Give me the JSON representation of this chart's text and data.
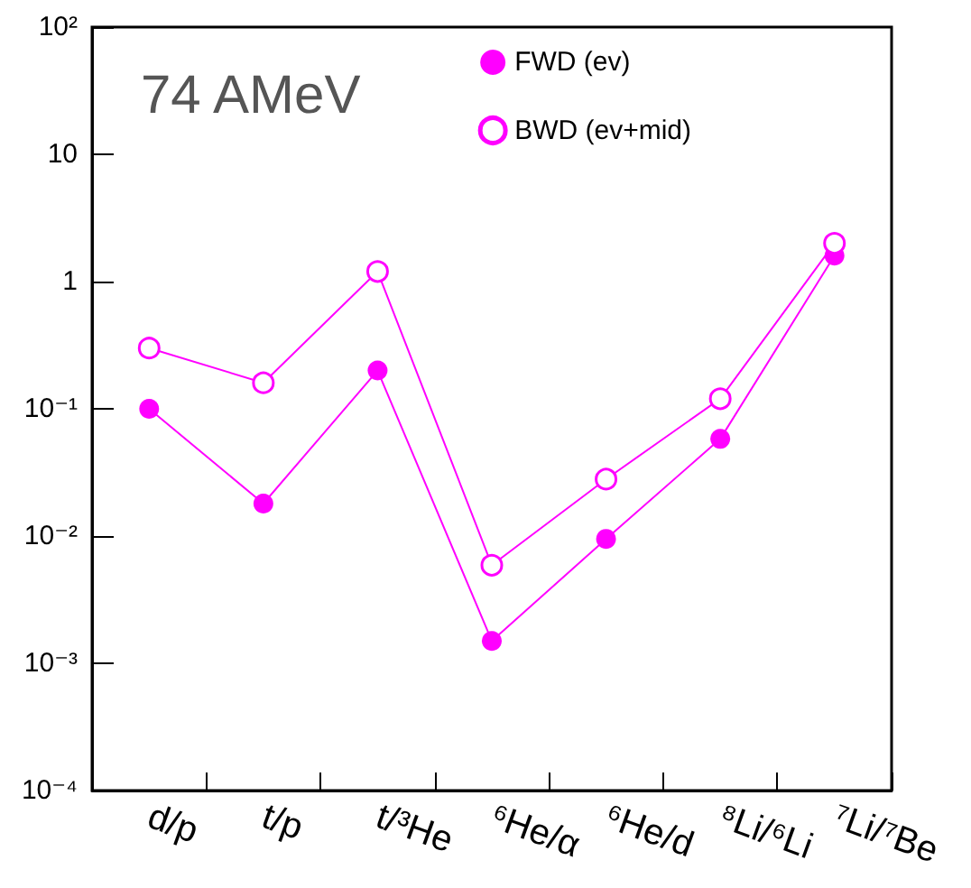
{
  "chart_data": {
    "type": "line",
    "categories": [
      "d/p",
      "t/p",
      "t/³He",
      "⁶He/α",
      "⁶He/d",
      "⁸Li/⁶Li",
      "⁷Li/⁷Be"
    ],
    "series": [
      {
        "name": "FWD (ev)",
        "color": "#ff00ff",
        "marker": "circle",
        "values": [
          0.1,
          0.018,
          0.2,
          0.0015,
          0.0095,
          0.058,
          1.6
        ]
      },
      {
        "name": "BWD (ev+mid)",
        "color": "#ff00ff",
        "marker": "circle",
        "values": [
          0.3,
          0.16,
          1.2,
          0.0059,
          0.028,
          0.12,
          2.0
        ]
      }
    ],
    "log": "y",
    "ylim": [
      0.0001,
      100
    ],
    "yticks": [
      {
        "value": 0.0001,
        "label": "10⁻⁴"
      },
      {
        "value": 0.001,
        "label": "10⁻³"
      },
      {
        "value": 0.01,
        "label": "10⁻²"
      },
      {
        "value": 0.1,
        "label": "10⁻¹"
      },
      1,
      10,
      {
        "value": 100,
        "label": "10²"
      }
    ],
    "grid": false,
    "legend": "top right",
    "line_style": "solid",
    "annotations": [
      "74 AMeV"
    ]
  }
}
